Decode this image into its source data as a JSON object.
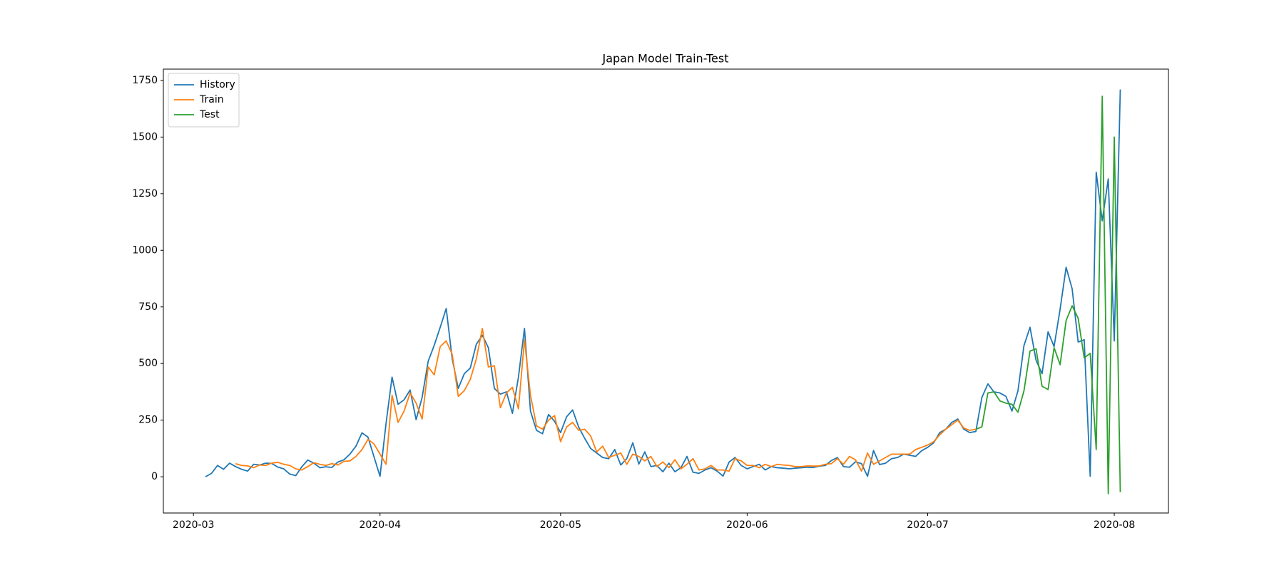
{
  "chart_data": {
    "type": "line",
    "title": "Japan Model Train-Test",
    "xlim": [
      "2020-02-25",
      "2020-08-10"
    ],
    "xticks": [
      {
        "value": "2020-03-01",
        "label": "2020-03"
      },
      {
        "value": "2020-04-01",
        "label": "2020-04"
      },
      {
        "value": "2020-05-01",
        "label": "2020-05"
      },
      {
        "value": "2020-06-01",
        "label": "2020-06"
      },
      {
        "value": "2020-07-01",
        "label": "2020-07"
      },
      {
        "value": "2020-08-01",
        "label": "2020-08"
      }
    ],
    "ylim": [
      -160,
      1800
    ],
    "yticks": [
      0,
      250,
      500,
      750,
      1000,
      1250,
      1500,
      1750
    ],
    "legend": "upper left",
    "series": [
      {
        "name": "History",
        "color": "#1f77b4",
        "start": "2020-03-03",
        "values": [
          0,
          15,
          50,
          33,
          60,
          45,
          33,
          25,
          55,
          52,
          60,
          59,
          43,
          35,
          12,
          5,
          44,
          74,
          60,
          40,
          44,
          41,
          65,
          75,
          100,
          135,
          194,
          175,
          88,
          2,
          235,
          440,
          320,
          340,
          383,
          252,
          351,
          510,
          580,
          660,
          743,
          520,
          390,
          455,
          480,
          585,
          625,
          570,
          390,
          365,
          375,
          280,
          440,
          655,
          290,
          205,
          190,
          275,
          245,
          195,
          265,
          295,
          220,
          170,
          125,
          105,
          85,
          80,
          120,
          52,
          80,
          150,
          56,
          110,
          45,
          50,
          22,
          60,
          22,
          40,
          90,
          20,
          15,
          30,
          40,
          25,
          3,
          65,
          85,
          50,
          35,
          45,
          55,
          30,
          45,
          40,
          38,
          35,
          38,
          40,
          42,
          41,
          47,
          50,
          72,
          85,
          45,
          42,
          66,
          58,
          2,
          116,
          54,
          60,
          80,
          85,
          100,
          95,
          90,
          115,
          130,
          150,
          195,
          210,
          240,
          255,
          210,
          195,
          200,
          350,
          410,
          375,
          370,
          355,
          290,
          380,
          580,
          660,
          515,
          455,
          640,
          575,
          740,
          925,
          830,
          595,
          605,
          2,
          1345,
          1130,
          1315,
          600,
          1710
        ]
      },
      {
        "name": "Train",
        "color": "#ff7f0e",
        "start": "2020-03-08",
        "values": [
          58,
          50,
          48,
          40,
          52,
          50,
          60,
          64,
          55,
          50,
          35,
          30,
          45,
          62,
          55,
          50,
          58,
          52,
          68,
          70,
          90,
          120,
          165,
          145,
          100,
          55,
          360,
          240,
          290,
          370,
          325,
          255,
          485,
          450,
          575,
          600,
          540,
          355,
          380,
          430,
          520,
          655,
          485,
          490,
          305,
          370,
          395,
          300,
          605,
          360,
          225,
          210,
          250,
          270,
          155,
          220,
          240,
          205,
          210,
          180,
          110,
          135,
          85,
          95,
          105,
          55,
          100,
          90,
          70,
          90,
          45,
          65,
          40,
          75,
          35,
          55,
          80,
          30,
          35,
          50,
          30,
          30,
          25,
          80,
          70,
          50,
          50,
          40,
          55,
          45,
          55,
          52,
          50,
          45,
          45,
          48,
          47,
          48,
          55,
          58,
          80,
          55,
          90,
          75,
          25,
          105,
          55,
          70,
          85,
          100,
          100,
          100,
          100,
          120,
          130,
          140,
          155,
          185,
          210,
          230,
          250,
          215,
          205,
          210
        ]
      },
      {
        "name": "Test",
        "color": "#2ca02c",
        "start": "2020-07-09",
        "values": [
          210,
          220,
          370,
          375,
          335,
          325,
          320,
          285,
          380,
          555,
          565,
          400,
          385,
          570,
          495,
          690,
          755,
          700,
          525,
          545,
          120,
          1680,
          -75,
          1500,
          -68
        ]
      }
    ]
  }
}
